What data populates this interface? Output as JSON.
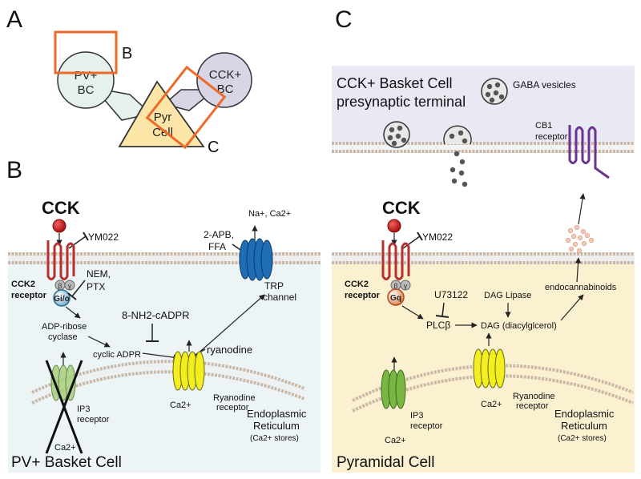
{
  "panel_labels": {
    "a": "A",
    "b": "B",
    "c": "C",
    "b_box": "B",
    "c_box": "C"
  },
  "panel_a": {
    "pv_cell": [
      "PV+",
      "BC"
    ],
    "cck_cell": [
      "CCK+",
      "BC"
    ],
    "pyr_cell": [
      "Pyr",
      "Cell"
    ]
  },
  "panel_b": {
    "ligand": "CCK",
    "antagonist": "YM022",
    "receptor": [
      "CCK2",
      "receptor"
    ],
    "g_protein": "Gi/o",
    "beta": "β",
    "gamma": "γ",
    "inhibitors_g": [
      "NEM,",
      "PTX"
    ],
    "adp_cyclase": [
      "ADP-ribose",
      "cyclase"
    ],
    "cyclic_adpr": "cyclic ADPR",
    "cadpr_blocker": "8-NH2-cADPR",
    "ryanodine": "ryanodine",
    "ryr_label": [
      "Ryanodine",
      "receptor"
    ],
    "ip3_label": [
      "IP3",
      "receptor"
    ],
    "ca_under_ryr": "Ca2+",
    "ca_under_ip3": "Ca2+",
    "er_label": [
      "Endoplasmic",
      "Reticulum",
      "(Ca2+ stores)"
    ],
    "trp_ions": "Na+, Ca2+",
    "trp_blockers": [
      "2-APB,",
      "FFA"
    ],
    "trp_label": [
      "TRP",
      "channel"
    ],
    "cell_label": "PV+ Basket Cell"
  },
  "panel_c": {
    "terminal_label": [
      "CCK+ Basket Cell",
      "presynaptic terminal"
    ],
    "gaba_label": "GABA vesicles",
    "cb1_label": [
      "CB1",
      "receptor"
    ],
    "ligand": "CCK",
    "antagonist": "YM022",
    "receptor": [
      "CCK2",
      "receptor"
    ],
    "g_protein": "Gq",
    "beta": "β",
    "gamma": "γ",
    "plc_blocker": "U73122",
    "plc": "PLCβ",
    "dag_lipase": "DAG Lipase",
    "dag": "DAG (diacylglcerol)",
    "endocannabinoids": "endocannabinoids",
    "ryr_label": [
      "Ryanodine",
      "receptor"
    ],
    "ip3_label": [
      "IP3",
      "receptor"
    ],
    "ca_under_ryr": "Ca2+",
    "ca_under_ip3": "Ca2+",
    "er_label": [
      "Endoplasmic",
      "Reticulum",
      "(Ca2+ stores)"
    ],
    "cell_label": "Pyramidal Cell"
  },
  "colors": {
    "pv_bg": "#ecf4f6",
    "pyr_bg": "#fbf1d1",
    "terminal_bg": "#e9e9f4",
    "orange_box": "#ee6a2b",
    "receptor_red": "#b53030",
    "ryr_yellow": "#f2ee20",
    "ip3_green": "#7ab642",
    "trp_blue": "#1f6db4",
    "cb1_purple": "#6b3391"
  }
}
